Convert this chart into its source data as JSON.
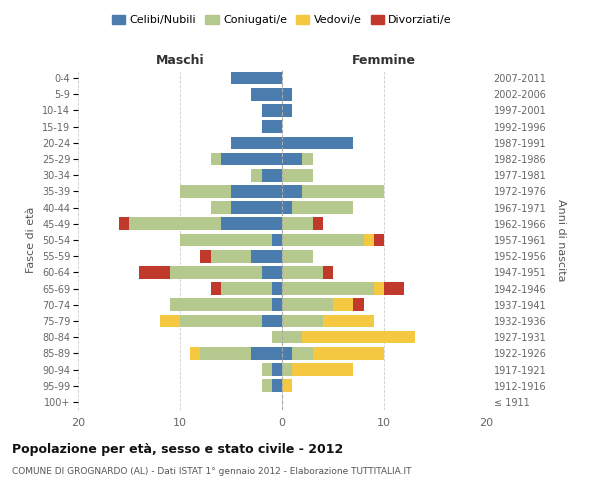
{
  "age_groups": [
    "100+",
    "95-99",
    "90-94",
    "85-89",
    "80-84",
    "75-79",
    "70-74",
    "65-69",
    "60-64",
    "55-59",
    "50-54",
    "45-49",
    "40-44",
    "35-39",
    "30-34",
    "25-29",
    "20-24",
    "15-19",
    "10-14",
    "5-9",
    "0-4"
  ],
  "birth_years": [
    "≤ 1911",
    "1912-1916",
    "1917-1921",
    "1922-1926",
    "1927-1931",
    "1932-1936",
    "1937-1941",
    "1942-1946",
    "1947-1951",
    "1952-1956",
    "1957-1961",
    "1962-1966",
    "1967-1971",
    "1972-1976",
    "1977-1981",
    "1982-1986",
    "1987-1991",
    "1992-1996",
    "1997-2001",
    "2002-2006",
    "2007-2011"
  ],
  "maschi": {
    "celibi": [
      0,
      1,
      1,
      3,
      0,
      2,
      1,
      1,
      2,
      3,
      1,
      6,
      5,
      5,
      2,
      6,
      5,
      2,
      2,
      3,
      5
    ],
    "coniugati": [
      0,
      1,
      1,
      5,
      1,
      8,
      10,
      5,
      9,
      4,
      9,
      9,
      2,
      5,
      1,
      1,
      0,
      0,
      0,
      0,
      0
    ],
    "vedovi": [
      0,
      0,
      0,
      1,
      0,
      2,
      0,
      0,
      0,
      0,
      0,
      0,
      0,
      0,
      0,
      0,
      0,
      0,
      0,
      0,
      0
    ],
    "divorziati": [
      0,
      0,
      0,
      0,
      0,
      0,
      0,
      1,
      3,
      1,
      0,
      1,
      0,
      0,
      0,
      0,
      0,
      0,
      0,
      0,
      0
    ]
  },
  "femmine": {
    "nubili": [
      0,
      0,
      0,
      1,
      0,
      0,
      0,
      0,
      0,
      0,
      0,
      0,
      1,
      2,
      0,
      2,
      7,
      0,
      1,
      1,
      0
    ],
    "coniugate": [
      0,
      0,
      1,
      2,
      2,
      4,
      5,
      9,
      4,
      3,
      8,
      3,
      6,
      8,
      3,
      1,
      0,
      0,
      0,
      0,
      0
    ],
    "vedove": [
      0,
      1,
      6,
      7,
      11,
      5,
      2,
      1,
      0,
      0,
      1,
      0,
      0,
      0,
      0,
      0,
      0,
      0,
      0,
      0,
      0
    ],
    "divorziate": [
      0,
      0,
      0,
      0,
      0,
      0,
      1,
      2,
      1,
      0,
      1,
      1,
      0,
      0,
      0,
      0,
      0,
      0,
      0,
      0,
      0
    ]
  },
  "colors": {
    "celibi_nubili": "#4a7cad",
    "coniugati": "#b5c98e",
    "vedovi": "#f5c842",
    "divorziati": "#c0392b"
  },
  "xlim": 20,
  "title": "Popolazione per età, sesso e stato civile - 2012",
  "subtitle": "COMUNE DI GROGNARDO (AL) - Dati ISTAT 1° gennaio 2012 - Elaborazione TUTTITALIA.IT",
  "ylabel_left": "Fasce di età",
  "ylabel_right": "Anni di nascita",
  "xlabel_left": "Maschi",
  "xlabel_right": "Femmine",
  "legend_labels": [
    "Celibi/Nubili",
    "Coniugati/e",
    "Vedovi/e",
    "Divorziati/e"
  ],
  "background_color": "#ffffff",
  "grid_color": "#cccccc"
}
